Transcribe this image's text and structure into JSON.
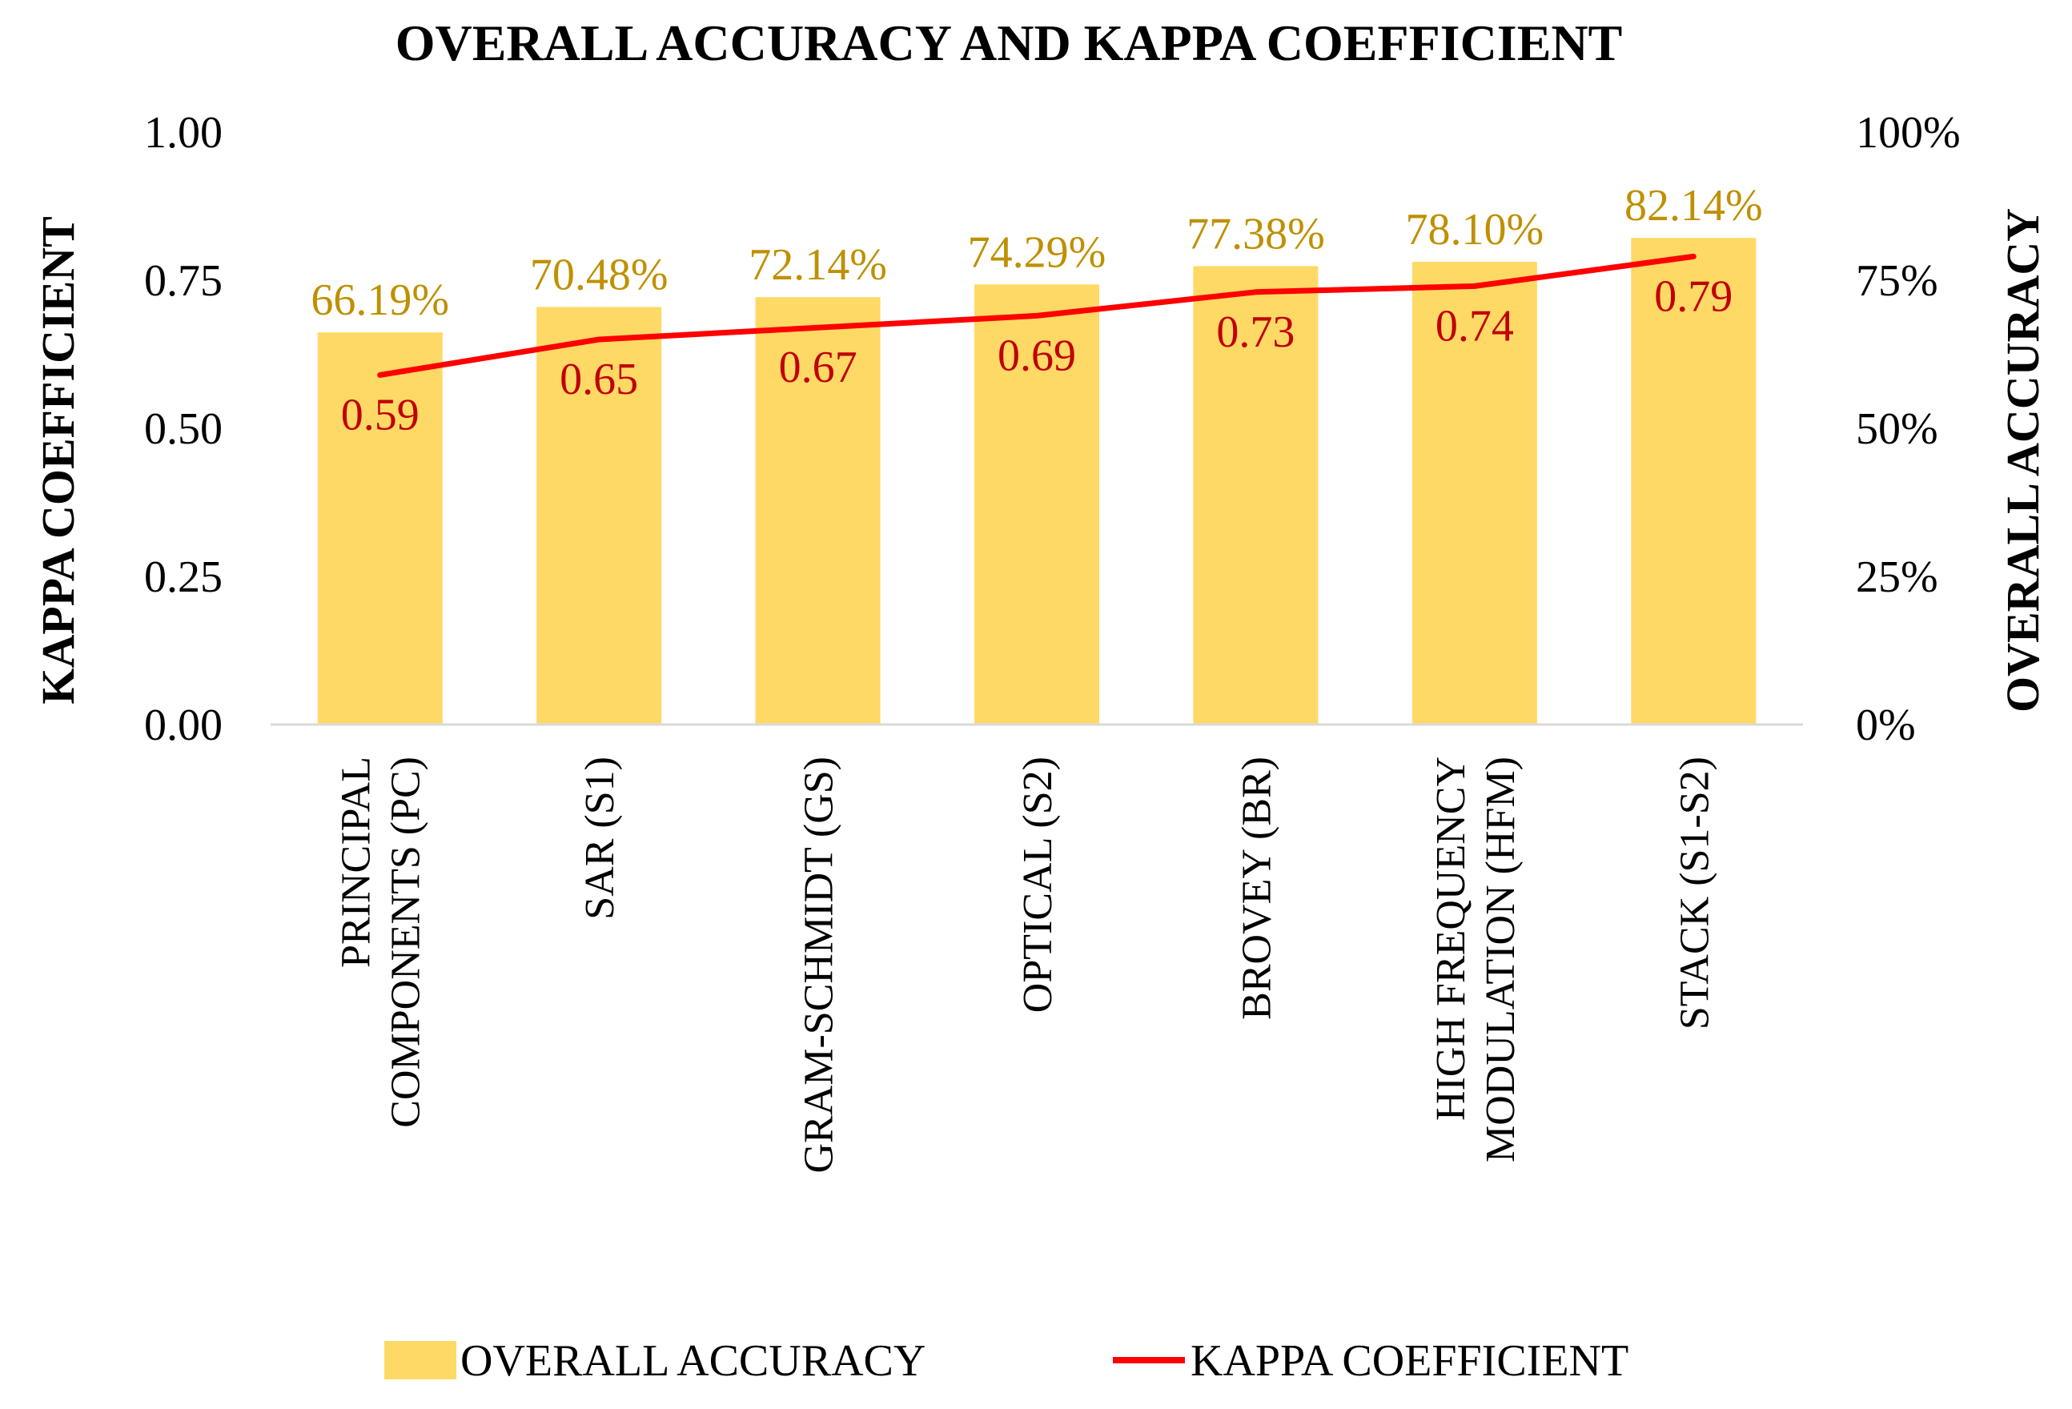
{
  "chart_data": {
    "type": "bar",
    "title": "OVERALL ACCURACY AND KAPPA COEFFICIENT",
    "categories": [
      [
        "PRINCIPAL",
        "COMPONENTS (PC)"
      ],
      [
        "SAR (S1)"
      ],
      [
        "GRAM-SCHMIDT (GS)"
      ],
      [
        "OPTICAL (S2)"
      ],
      [
        "BROVEY (BR)"
      ],
      [
        "HIGH FREQUENCY",
        "MODULATION (HFM)"
      ],
      [
        "STACK (S1-S2)"
      ]
    ],
    "series": [
      {
        "name": "OVERALL ACCURACY",
        "type": "bar",
        "axis": "right",
        "values": [
          66.19,
          70.48,
          72.14,
          74.29,
          77.38,
          78.1,
          82.14
        ],
        "labels": [
          "66.19%",
          "70.48%",
          "72.14%",
          "74.29%",
          "77.38%",
          "78.10%",
          "82.14%"
        ]
      },
      {
        "name": "KAPPA COEFFICIENT",
        "type": "line",
        "axis": "left",
        "values": [
          0.59,
          0.65,
          0.67,
          0.69,
          0.73,
          0.74,
          0.79
        ],
        "labels": [
          "0.59",
          "0.65",
          "0.67",
          "0.69",
          "0.73",
          "0.74",
          "0.79"
        ]
      }
    ],
    "ylabel_left": "KAPPA COEFFICIENT",
    "ylabel_right": "OVERALL ACCURACY",
    "ylim_left": [
      0,
      1
    ],
    "ylim_right": [
      0,
      100
    ],
    "yticks_left": [
      "0.00",
      "0.25",
      "0.50",
      "0.75",
      "1.00"
    ],
    "yticks_right": [
      "0%",
      "25%",
      "50%",
      "75%",
      "100%"
    ],
    "grid": false,
    "legend_position": "bottom",
    "colors": {
      "bar": "#FFD966",
      "bar_label": "#BF9000",
      "line": "#FF0000",
      "line_label": "#C00000",
      "axis": "#D9D9D9"
    }
  }
}
